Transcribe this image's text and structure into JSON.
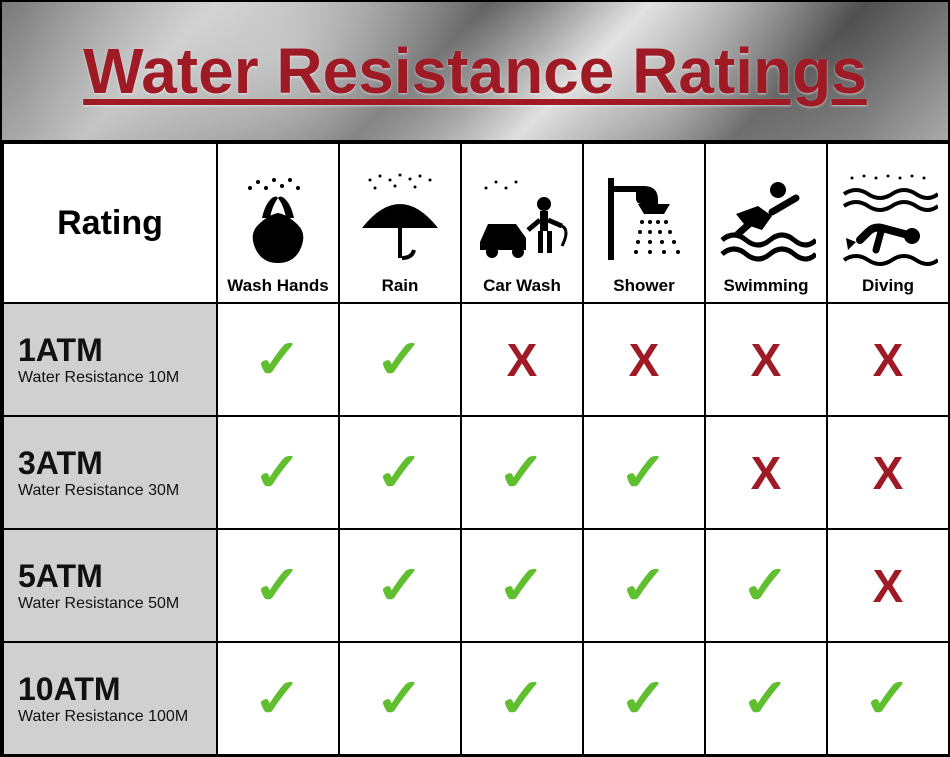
{
  "title": "Water Resistance Ratings",
  "colors": {
    "title_color": "#9e1b26",
    "check_color": "#5fbf2f",
    "x_color": "#9e1b26",
    "rating_cell_bg": "#d0d0d0",
    "border_color": "#000000",
    "background": "#ffffff"
  },
  "header_label": "Rating",
  "activities": [
    {
      "key": "wash_hands",
      "label": "Wash Hands",
      "icon": "wash-hands-icon"
    },
    {
      "key": "rain",
      "label": "Rain",
      "icon": "rain-icon"
    },
    {
      "key": "car_wash",
      "label": "Car Wash",
      "icon": "car-wash-icon"
    },
    {
      "key": "shower",
      "label": "Shower",
      "icon": "shower-icon"
    },
    {
      "key": "swimming",
      "label": "Swimming",
      "icon": "swimming-icon"
    },
    {
      "key": "diving",
      "label": "Diving",
      "icon": "diving-icon"
    }
  ],
  "ratings": [
    {
      "title": "1ATM",
      "subtitle": "Water Resistance 10M",
      "values": [
        true,
        true,
        false,
        false,
        false,
        false
      ]
    },
    {
      "title": "3ATM",
      "subtitle": "Water Resistance 30M",
      "values": [
        true,
        true,
        true,
        true,
        false,
        false
      ]
    },
    {
      "title": "5ATM",
      "subtitle": "Water Resistance 50M",
      "values": [
        true,
        true,
        true,
        true,
        true,
        false
      ]
    },
    {
      "title": "10ATM",
      "subtitle": "Water Resistance 100M",
      "values": [
        true,
        true,
        true,
        true,
        true,
        true
      ]
    }
  ],
  "marks": {
    "check_glyph": "✓",
    "x_glyph": "X"
  },
  "typography": {
    "title_fontsize": 64,
    "rating_head_fontsize": 34,
    "rating_title_fontsize": 32,
    "rating_sub_fontsize": 16,
    "icon_label_fontsize": 17
  }
}
